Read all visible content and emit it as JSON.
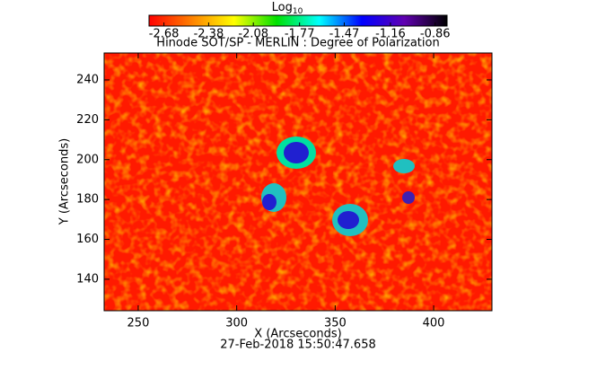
{
  "chart_data": {
    "type": "heatmap",
    "title": "Hinode SOT/SP - MERLIN : Degree of Polarization",
    "xlabel": "X (Arcseconds)",
    "ylabel": "Y (Arcseconds)",
    "footer": "27-Feb-2018 15:50:47.658",
    "xlim": [
      232.7,
      429.6
    ],
    "xticks": [
      250,
      300,
      350,
      400
    ],
    "ylim": [
      124.2,
      253.5
    ],
    "yticks": [
      140,
      160,
      180,
      200,
      220,
      240
    ],
    "colorbar_label": "Log",
    "colorbar_label_sub": "10",
    "clim": [
      -2.78,
      -0.78
    ],
    "cticks": [
      -2.68,
      -2.38,
      -2.08,
      -1.77,
      -1.47,
      -1.16,
      -0.86
    ],
    "colormap": [
      "#ff0000",
      "#ff8000",
      "#ffff00",
      "#00e000",
      "#00ffff",
      "#0000ff",
      "#6000b0",
      "#000000"
    ]
  }
}
